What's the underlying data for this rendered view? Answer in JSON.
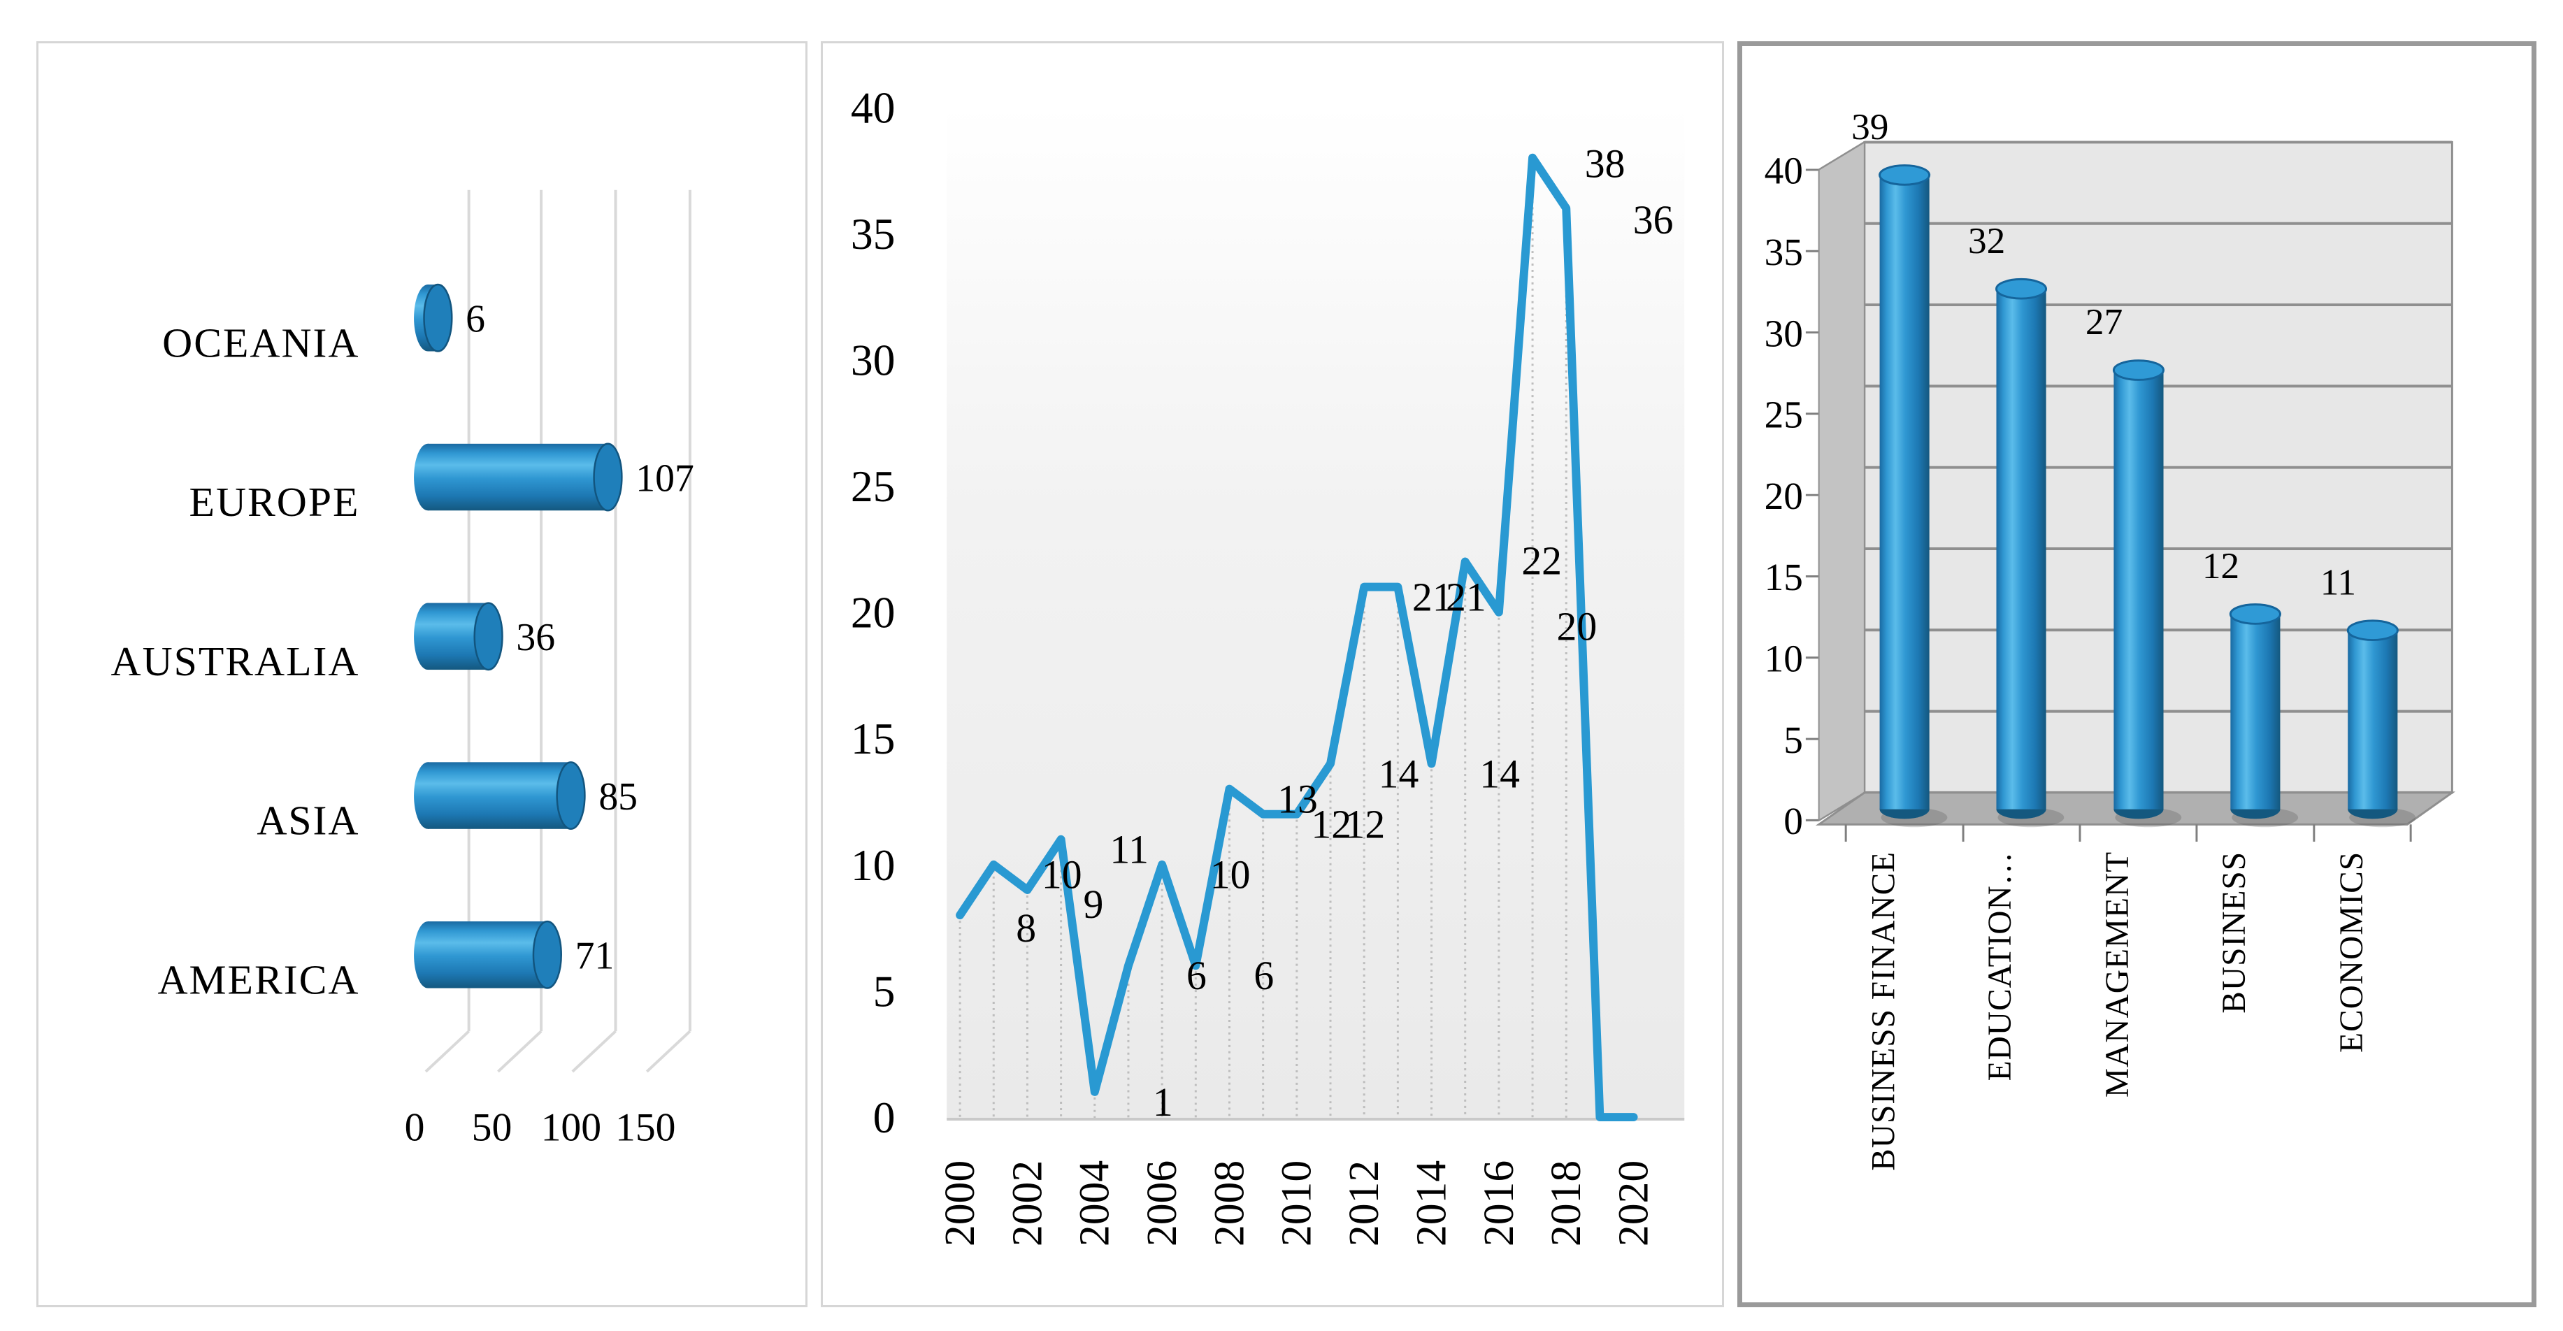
{
  "figure": {
    "description": "Three-panel bibliometric chart figure: documents by continent, documents per year, documents by subject area"
  },
  "colors": {
    "accent_blue": "#2b96d3",
    "blue_highlight": "#5bbcea",
    "blue_dark": "#155e92",
    "blue_cap": "#1f7fba",
    "line_blue": "#2999d2",
    "grid_light": "#d9d9d9",
    "grid_dark": "#8f8f8f",
    "back_wall": "#e7e7e7",
    "side_wall": "#c3c3c3",
    "floor": "#b0b0b0",
    "panel_border_light": "#d6d6d6",
    "panel_border_dark": "#9a9a9a",
    "dropline": "#bdbdbd",
    "baseline": "#c9c9c9",
    "plot_fill_top": "#ffffff",
    "plot_fill_bottom": "#eaeaea",
    "text": "#000000"
  },
  "chart_data": [
    {
      "type": "bar",
      "orientation": "horizontal",
      "style": "3d-cylinder",
      "title": "",
      "categories": [
        "OCEANIA",
        "EUROPE",
        "AUSTRALIA",
        "ASIA",
        "AMERICA"
      ],
      "values": [
        6,
        107,
        36,
        85,
        71
      ],
      "value_labels": [
        "6",
        "107",
        "36",
        "85",
        "71"
      ],
      "x_ticks": [
        "0",
        "50",
        "100",
        "150"
      ],
      "xlim": [
        0,
        150
      ],
      "grid": "vertical-3d",
      "legend": "none"
    },
    {
      "type": "line",
      "title": "",
      "x": [
        2000,
        2001,
        2002,
        2003,
        2004,
        2005,
        2006,
        2007,
        2008,
        2009,
        2010,
        2011,
        2012,
        2013,
        2014,
        2015,
        2016,
        2017,
        2018,
        2019,
        2020
      ],
      "values": [
        8,
        10,
        9,
        11,
        1,
        6,
        10,
        6,
        13,
        12,
        12,
        14,
        21,
        21,
        14,
        22,
        20,
        38,
        36,
        0,
        0
      ],
      "point_labels": [
        "8",
        "10",
        "9",
        "11",
        "1",
        "6",
        "10",
        "6",
        "13",
        "12",
        "12",
        "14",
        "21",
        "21",
        "14",
        "22",
        "20",
        "38",
        "36",
        "",
        ""
      ],
      "x_tick_labels": [
        "2000",
        "2002",
        "2004",
        "2006",
        "2008",
        "2010",
        "2012",
        "2014",
        "2016",
        "2018",
        "2020"
      ],
      "y_ticks": [
        "0",
        "5",
        "10",
        "15",
        "20",
        "25",
        "30",
        "35",
        "40"
      ],
      "ylim": [
        0,
        40
      ],
      "droplines": "dotted",
      "grid": "off",
      "legend": "none"
    },
    {
      "type": "bar",
      "orientation": "vertical",
      "style": "3d-cylinder",
      "title": "",
      "categories": [
        "BUSINESS FINANCE",
        "EDUCATION…",
        "MANAGEMENT",
        "BUSINESS",
        "ECONOMICS"
      ],
      "values": [
        39,
        32,
        27,
        12,
        11
      ],
      "value_labels": [
        "39",
        "32",
        "27",
        "12",
        "11"
      ],
      "y_ticks": [
        "0",
        "5",
        "10",
        "15",
        "20",
        "25",
        "30",
        "35",
        "40"
      ],
      "ylim": [
        0,
        40
      ],
      "grid": "horizontal-3d",
      "legend": "none"
    }
  ]
}
